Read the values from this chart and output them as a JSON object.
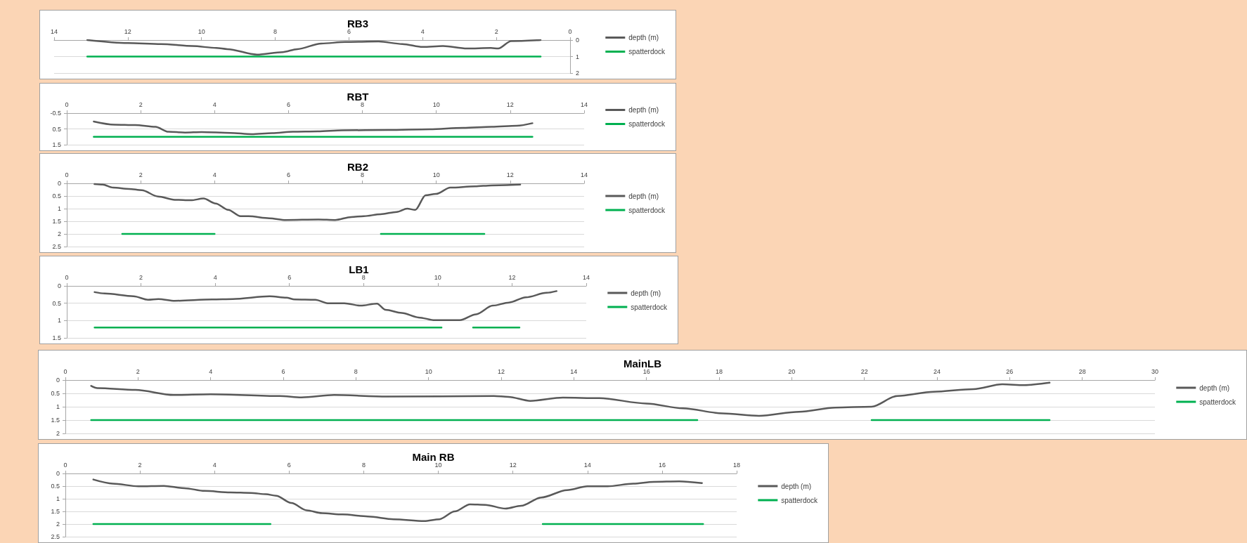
{
  "chart_data": [
    {
      "type": "line",
      "title": "RB3",
      "xlim": [
        14,
        0
      ],
      "xticks": [
        0,
        2,
        4,
        6,
        8,
        10,
        12,
        14
      ],
      "ylim": [
        2,
        0
      ],
      "yticks": [
        0,
        1,
        2
      ],
      "grid": "y",
      "legend": "right",
      "marker": "none",
      "series": [
        {
          "name": "depth (m)",
          "color": "#595959",
          "x": [
            13.1,
            12.0,
            11.1,
            10.25,
            9.6,
            9.3,
            8.5,
            7.8,
            7.4,
            6.75,
            6.1,
            5.2,
            4.55,
            4.0,
            3.45,
            2.8,
            2.15,
            1.95,
            1.6,
            0.8
          ],
          "values": [
            0.0,
            0.18,
            0.24,
            0.36,
            0.48,
            0.55,
            0.88,
            0.73,
            0.55,
            0.21,
            0.12,
            0.09,
            0.24,
            0.42,
            0.36,
            0.51,
            0.48,
            0.51,
            0.06,
            0.0
          ]
        },
        {
          "name": "spatterdock",
          "color": "#00b050",
          "x": [
            13.1,
            0.8
          ],
          "values": [
            1,
            1
          ]
        }
      ]
    },
    {
      "type": "line",
      "title": "RBT",
      "xlim": [
        0,
        14
      ],
      "xticks": [
        0,
        2,
        4,
        6,
        8,
        10,
        12,
        14
      ],
      "ylim": [
        1.5,
        -0.5
      ],
      "yticks": [
        -0.5,
        0.5,
        1.5
      ],
      "grid": "y",
      "legend": "right",
      "marker": "none",
      "series": [
        {
          "name": "depth (m)",
          "color": "#595959",
          "x": [
            0.73,
            1.29,
            1.85,
            2.4,
            2.75,
            3.2,
            3.65,
            4.43,
            5.0,
            5.56,
            6.12,
            6.79,
            7.46,
            8.7,
            9.82,
            10.72,
            11.5,
            12.18,
            12.6
          ],
          "values": [
            0.03,
            0.23,
            0.26,
            0.37,
            0.68,
            0.73,
            0.7,
            0.75,
            0.83,
            0.77,
            0.68,
            0.66,
            0.59,
            0.57,
            0.52,
            0.43,
            0.37,
            0.3,
            0.14
          ]
        },
        {
          "name": "spatterdock",
          "color": "#00b050",
          "x": [
            0.73,
            12.6
          ],
          "values": [
            1,
            1
          ]
        }
      ]
    },
    {
      "type": "line",
      "title": "RB2",
      "xlim": [
        0,
        14
      ],
      "xticks": [
        0,
        2,
        4,
        6,
        8,
        10,
        12,
        14
      ],
      "ylim": [
        2.5,
        0
      ],
      "yticks": [
        0,
        0.5,
        1,
        1.5,
        2,
        2.5
      ],
      "grid": "y",
      "legend": "right",
      "marker": "none",
      "series": [
        {
          "name": "depth (m)",
          "color": "#595959",
          "x": [
            0.75,
            0.97,
            1.25,
            1.69,
            2.03,
            2.47,
            2.92,
            3.36,
            3.7,
            4.03,
            4.37,
            4.7,
            4.92,
            5.48,
            5.92,
            6.81,
            7.26,
            7.7,
            8.04,
            8.49,
            8.93,
            9.21,
            9.43,
            9.71,
            9.99,
            10.38,
            11.05,
            11.49,
            12.27
          ],
          "values": [
            0.03,
            0.05,
            0.17,
            0.22,
            0.27,
            0.52,
            0.65,
            0.67,
            0.6,
            0.8,
            1.05,
            1.3,
            1.3,
            1.38,
            1.45,
            1.43,
            1.45,
            1.33,
            1.3,
            1.22,
            1.13,
            1.0,
            1.05,
            0.47,
            0.42,
            0.17,
            0.12,
            0.08,
            0.05
          ]
        },
        {
          "name": "spatterdock",
          "color": "#00b050",
          "x": [
            1.5,
            4.0,
            6.0,
            8.5,
            11.3
          ],
          "values": [
            2,
            2,
            null,
            2,
            2
          ]
        }
      ]
    },
    {
      "type": "line",
      "title": "LB1",
      "xlim": [
        0,
        14
      ],
      "xticks": [
        0,
        2,
        4,
        6,
        8,
        10,
        12,
        14
      ],
      "ylim": [
        1.5,
        0
      ],
      "yticks": [
        0,
        0.5,
        1,
        1.5
      ],
      "grid": "y",
      "legend": "right",
      "marker": "none",
      "series": [
        {
          "name": "depth (m)",
          "color": "#595959",
          "x": [
            0.75,
            1.02,
            1.8,
            2.19,
            2.47,
            2.91,
            3.92,
            4.47,
            5.47,
            5.92,
            6.14,
            6.7,
            7.03,
            7.48,
            7.92,
            8.36,
            8.59,
            9.03,
            9.48,
            9.92,
            10.59,
            11.03,
            11.48,
            11.92,
            12.37,
            12.93,
            13.2
          ],
          "values": [
            0.18,
            0.22,
            0.3,
            0.4,
            0.38,
            0.43,
            0.39,
            0.38,
            0.3,
            0.34,
            0.39,
            0.4,
            0.5,
            0.5,
            0.57,
            0.51,
            0.69,
            0.78,
            0.91,
            0.99,
            0.99,
            0.82,
            0.57,
            0.48,
            0.33,
            0.2,
            0.15
          ]
        },
        {
          "name": "spatterdock",
          "color": "#00b050",
          "x": [
            0.75,
            10.1,
            10.5,
            10.95,
            12.2
          ],
          "values": [
            1.2,
            1.2,
            null,
            1.2,
            1.2
          ]
        }
      ]
    },
    {
      "type": "line",
      "title": "MainLB",
      "xlim": [
        0,
        30
      ],
      "xticks": [
        0,
        2,
        4,
        6,
        8,
        10,
        12,
        14,
        16,
        18,
        20,
        22,
        24,
        26,
        28,
        30
      ],
      "ylim": [
        2,
        0
      ],
      "yticks": [
        0,
        0.5,
        1,
        1.5,
        2
      ],
      "grid": "y",
      "legend": "right",
      "marker": "none",
      "series": [
        {
          "name": "depth (m)",
          "color": "#595959",
          "x": [
            0.71,
            0.88,
            1.93,
            2.98,
            4.0,
            5.9,
            6.5,
            7.4,
            8.85,
            11.8,
            12.2,
            12.8,
            13.7,
            14.7,
            16.0,
            17.0,
            18.1,
            19.1,
            20.2,
            21.2,
            22.2,
            22.9,
            23.9,
            25.0,
            25.8,
            26.4,
            27.1
          ],
          "values": [
            0.22,
            0.3,
            0.37,
            0.56,
            0.53,
            0.6,
            0.65,
            0.56,
            0.62,
            0.6,
            0.63,
            0.78,
            0.66,
            0.68,
            0.88,
            1.06,
            1.25,
            1.34,
            1.19,
            1.03,
            1.0,
            0.6,
            0.44,
            0.34,
            0.16,
            0.19,
            0.1
          ]
        },
        {
          "name": "spatterdock",
          "color": "#00b050",
          "x": [
            0.71,
            17.4,
            20.0,
            22.2,
            27.1
          ],
          "values": [
            1.5,
            1.5,
            null,
            1.5,
            1.5
          ]
        }
      ]
    },
    {
      "type": "line",
      "title": "Main RB",
      "xlim": [
        0,
        18
      ],
      "xticks": [
        0,
        2,
        4,
        6,
        8,
        10,
        12,
        14,
        16,
        18
      ],
      "ylim": [
        2.5,
        0
      ],
      "yticks": [
        0,
        0.5,
        1,
        1.5,
        2,
        2.5
      ],
      "grid": "y",
      "legend": "right",
      "marker": "none",
      "series": [
        {
          "name": "depth (m)",
          "color": "#595959",
          "x": [
            0.75,
            1.27,
            1.96,
            2.64,
            3.19,
            3.73,
            4.42,
            4.97,
            5.38,
            5.65,
            6.06,
            6.47,
            6.88,
            7.43,
            8.11,
            8.8,
            9.62,
            10.03,
            10.44,
            10.85,
            11.26,
            11.8,
            12.22,
            12.76,
            13.45,
            14.0,
            14.54,
            15.23,
            15.77,
            16.46,
            17.07
          ],
          "values": [
            0.24,
            0.4,
            0.51,
            0.49,
            0.58,
            0.69,
            0.75,
            0.77,
            0.82,
            0.88,
            1.17,
            1.46,
            1.57,
            1.62,
            1.7,
            1.81,
            1.88,
            1.81,
            1.5,
            1.22,
            1.24,
            1.39,
            1.28,
            0.95,
            0.66,
            0.51,
            0.51,
            0.4,
            0.33,
            0.31,
            0.38
          ]
        },
        {
          "name": "spatterdock",
          "color": "#00b050",
          "x": [
            0.75,
            5.5,
            9.0,
            12.8,
            17.1
          ],
          "values": [
            2,
            2,
            null,
            2,
            2
          ]
        }
      ]
    }
  ]
}
